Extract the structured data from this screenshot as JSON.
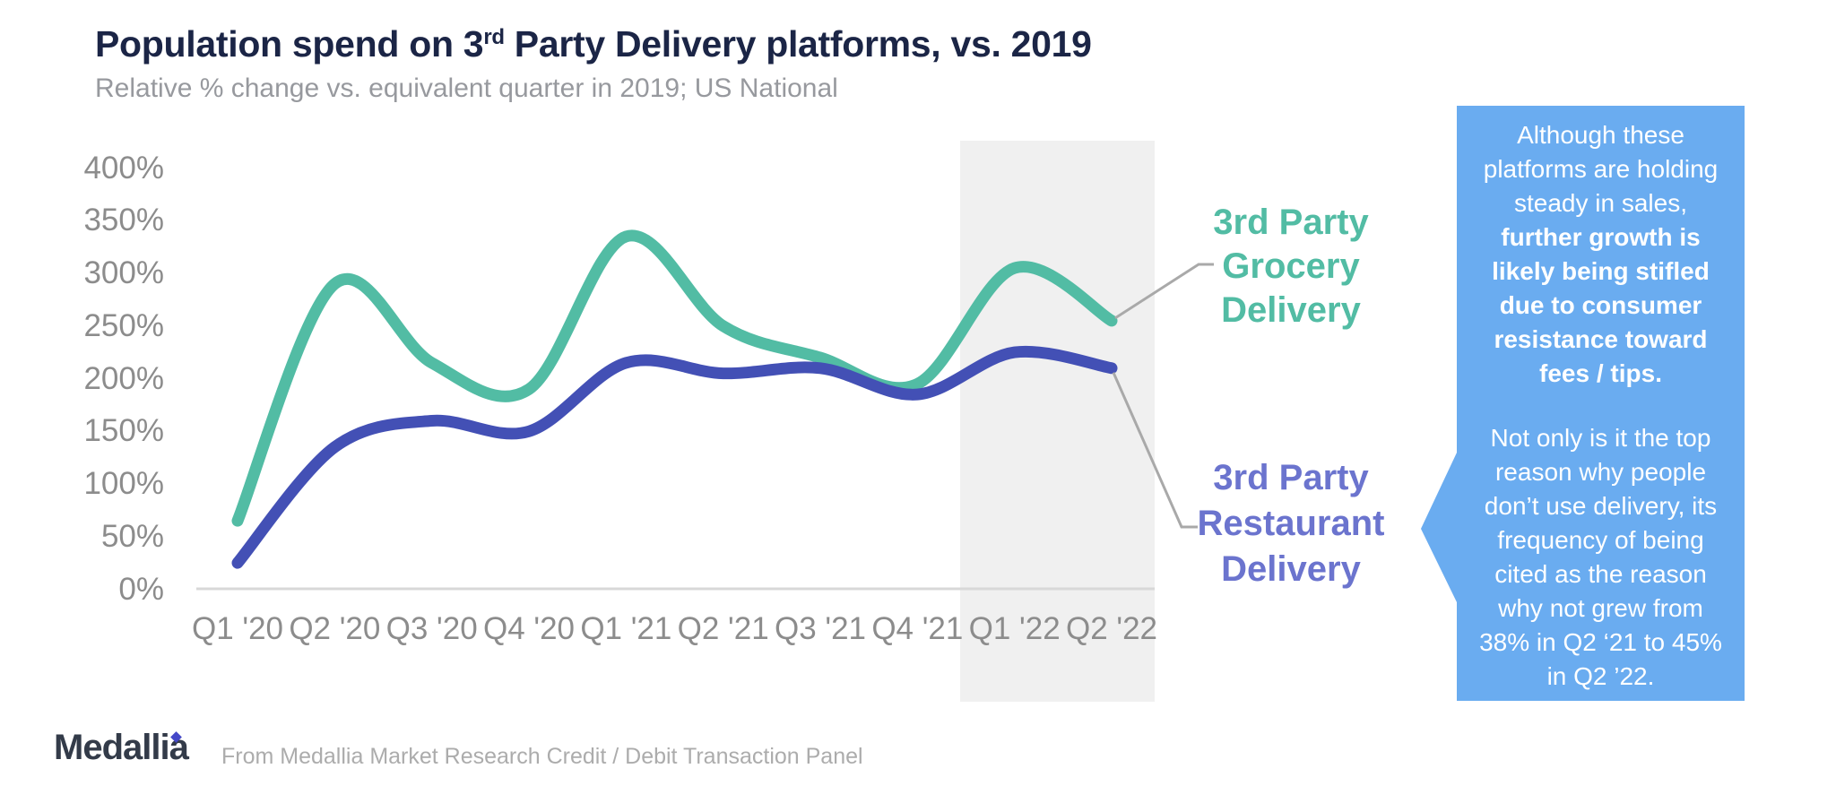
{
  "header": {
    "title_pre": "Population spend on 3",
    "title_sup": "rd",
    "title_post": " Party Delivery platforms, vs. 2019",
    "subtitle": "Relative % change vs. equivalent quarter in 2019; US National"
  },
  "chart_data": {
    "type": "line",
    "title": "Population spend on 3rd Party Delivery platforms, vs. 2019",
    "subtitle": "Relative % change vs. equivalent quarter in 2019; US National",
    "categories": [
      "Q1 '20",
      "Q2 '20",
      "Q3 '20",
      "Q4 '20",
      "Q1 '21",
      "Q2 '21",
      "Q3 '21",
      "Q4 '21",
      "Q1 '22",
      "Q2 '22"
    ],
    "unit": "%",
    "series": [
      {
        "name": "3rd Party Grocery Delivery",
        "color": "#52bca4",
        "values": [
          65,
          290,
          215,
          190,
          335,
          250,
          220,
          195,
          305,
          255
        ]
      },
      {
        "name": "3rd Party Restaurant Delivery",
        "color": "#4350b5",
        "values": [
          25,
          135,
          160,
          150,
          215,
          205,
          210,
          185,
          225,
          210
        ]
      }
    ],
    "yticks": [
      "400%",
      "350%",
      "300%",
      "250%",
      "200%",
      "150%",
      "100%",
      "50%",
      "0%"
    ],
    "ylim": [
      0,
      400
    ],
    "grid": false,
    "legend_position": "right",
    "highlight_band": {
      "categories": [
        "Q1 '22",
        "Q2 '22"
      ],
      "color": "#f0f0f0"
    },
    "axis_line_color": "#d8d8d8",
    "connector_color": "#a9a9a9"
  },
  "legend": {
    "grocery": {
      "color": "#52bca4",
      "lines": [
        "3rd Party",
        "Grocery",
        "Delivery"
      ]
    },
    "restaurant": {
      "color": "#6b74ce",
      "lines": [
        "3rd Party",
        "Restaurant",
        "Delivery"
      ]
    }
  },
  "callout": {
    "bg": "#6aacf0",
    "p1_regular": "Although these platforms are holding steady in sales, ",
    "p1_bold": "further growth is likely being stifled due to consumer resistance toward fees / tips.",
    "p2": "Not only is it the top reason why people don’t use delivery, its frequency of being cited as the reason why not grew from 38% in Q2 ‘21 to 45% in Q2 ’22."
  },
  "footer": {
    "logo": "Medallia",
    "source": "From Medallia Market Research Credit / Debit Transaction Panel"
  }
}
